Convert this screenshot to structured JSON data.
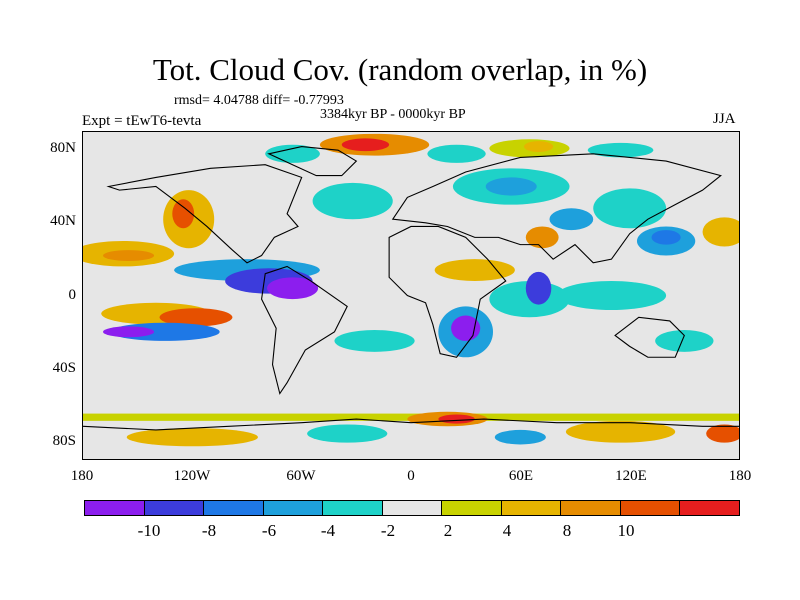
{
  "title": "Tot. Cloud Cov. (random overlap, in %)",
  "stats": "rmsd= 4.04788 diff= -0.77993",
  "period": "3384kyr BP - 0000kyr BP",
  "experiment": "Expt = tEwT6-tevta",
  "season": "JJA",
  "map": {
    "type": "global-contour-map",
    "projection": "cylindrical-equidistant",
    "lon_range": [
      -180,
      180
    ],
    "lat_range": [
      -90,
      90
    ],
    "background_color": "#e6e6e6",
    "coastline_color": "#000000",
    "y_ticks": [
      "80N",
      "40N",
      "0",
      "40S",
      "80S"
    ],
    "x_ticks": [
      "180",
      "120W",
      "60W",
      "0",
      "60E",
      "120E",
      "180"
    ]
  },
  "colorbar": {
    "colors": [
      "#8c1eee",
      "#3c3cdc",
      "#1e78e6",
      "#1ea0dc",
      "#1ed2c8",
      "#e6e6e6",
      "#c8d200",
      "#e6b400",
      "#e68c00",
      "#e65000",
      "#e61e1e"
    ],
    "labels": [
      "-10",
      "-8",
      "-6",
      "-4",
      "-2",
      "2",
      "4",
      "8",
      "10"
    ]
  }
}
